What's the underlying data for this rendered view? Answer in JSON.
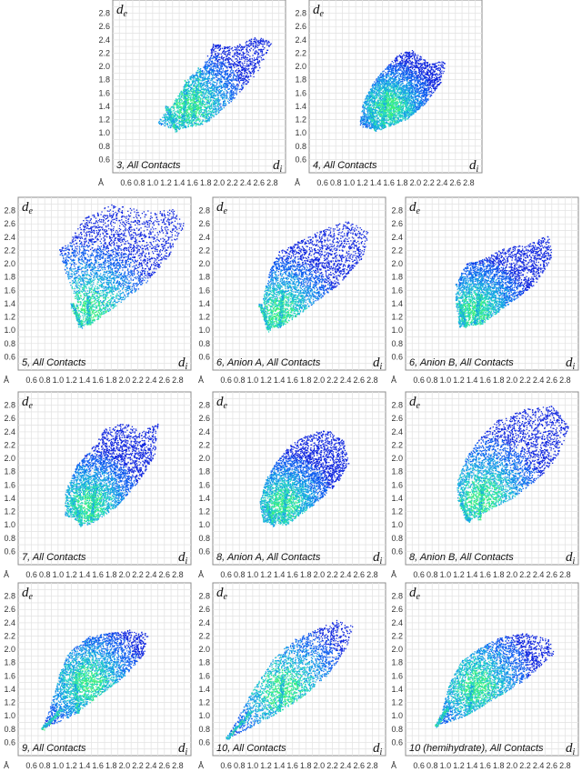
{
  "chart_data": [
    {
      "type": "scatter",
      "id": "p3",
      "caption": "3, All Contacts",
      "x_label": "d",
      "x_sub": "i",
      "y_label": "d",
      "y_sub": "e",
      "unit": "Å",
      "xlim": [
        0.4,
        3.0
      ],
      "ylim": [
        0.4,
        3.0
      ],
      "x_ticks": [
        "0.6",
        "0.8",
        "1.0",
        "1.2",
        "1.4",
        "1.6",
        "1.8",
        "2.0",
        "2.2",
        "2.4",
        "2.6",
        "2.8"
      ],
      "y_ticks": [
        "0.6",
        "0.8",
        "1.0",
        "1.2",
        "1.4",
        "1.6",
        "1.8",
        "2.0",
        "2.2",
        "2.4",
        "2.6",
        "2.8"
      ],
      "region": [
        [
          1.05,
          1.15
        ],
        [
          1.35,
          1.05
        ],
        [
          1.8,
          1.15
        ],
        [
          2.2,
          1.5
        ],
        [
          2.6,
          1.95
        ],
        [
          2.8,
          2.4
        ],
        [
          2.55,
          2.45
        ],
        [
          2.2,
          2.3
        ],
        [
          1.9,
          2.35
        ],
        [
          1.75,
          2.0
        ],
        [
          1.55,
          1.85
        ],
        [
          1.3,
          1.45
        ]
      ],
      "spikes": [
        [
          [
            1.35,
            1.05
          ],
          [
            1.2,
            1.4
          ]
        ],
        [
          [
            1.45,
            1.1
          ],
          [
            1.5,
            1.8
          ]
        ],
        [
          [
            1.6,
            1.2
          ],
          [
            1.7,
            2.0
          ]
        ]
      ],
      "peak": [
        1.55,
        1.4
      ]
    },
    {
      "type": "scatter",
      "id": "p4",
      "caption": "4, All Contacts",
      "x_label": "d",
      "x_sub": "i",
      "y_label": "d",
      "y_sub": "e",
      "unit": "Å",
      "xlim": [
        0.4,
        3.0
      ],
      "ylim": [
        0.4,
        3.0
      ],
      "x_ticks": [
        "0.6",
        "0.8",
        "1.0",
        "1.2",
        "1.4",
        "1.6",
        "1.8",
        "2.0",
        "2.2",
        "2.4",
        "2.6",
        "2.8"
      ],
      "y_ticks": [
        "0.6",
        "0.8",
        "1.0",
        "1.2",
        "1.4",
        "1.6",
        "1.8",
        "2.0",
        "2.2",
        "2.4",
        "2.6",
        "2.8"
      ],
      "region": [
        [
          1.15,
          1.1
        ],
        [
          1.45,
          1.05
        ],
        [
          1.85,
          1.2
        ],
        [
          2.15,
          1.45
        ],
        [
          2.4,
          1.8
        ],
        [
          2.45,
          2.1
        ],
        [
          2.2,
          2.05
        ],
        [
          1.95,
          2.25
        ],
        [
          1.75,
          2.2
        ],
        [
          1.55,
          2.0
        ],
        [
          1.35,
          1.75
        ],
        [
          1.2,
          1.45
        ]
      ],
      "spikes": [
        [
          [
            1.4,
            1.05
          ],
          [
            1.3,
            1.4
          ]
        ],
        [
          [
            1.5,
            1.1
          ],
          [
            1.55,
            1.7
          ]
        ]
      ],
      "peak": [
        1.6,
        1.4
      ]
    },
    {
      "type": "scatter",
      "id": "p5",
      "caption": "5, All Contacts",
      "x_label": "d",
      "x_sub": "i",
      "y_label": "d",
      "y_sub": "e",
      "unit": "Å",
      "xlim": [
        0.4,
        3.0
      ],
      "ylim": [
        0.4,
        3.0
      ],
      "x_ticks": [
        "0.6",
        "0.8",
        "1.0",
        "1.2",
        "1.4",
        "1.6",
        "1.8",
        "2.0",
        "2.2",
        "2.4",
        "2.6",
        "2.8"
      ],
      "y_ticks": [
        "0.6",
        "0.8",
        "1.0",
        "1.2",
        "1.4",
        "1.6",
        "1.8",
        "2.0",
        "2.2",
        "2.4",
        "2.6",
        "2.8"
      ],
      "region": [
        [
          1.3,
          1.05
        ],
        [
          1.5,
          1.1
        ],
        [
          1.9,
          1.4
        ],
        [
          2.3,
          1.7
        ],
        [
          2.65,
          2.1
        ],
        [
          2.9,
          2.6
        ],
        [
          2.7,
          2.85
        ],
        [
          2.3,
          2.8
        ],
        [
          1.8,
          2.9
        ],
        [
          1.4,
          2.7
        ],
        [
          1.2,
          2.4
        ],
        [
          1.0,
          2.2
        ],
        [
          1.1,
          1.9
        ],
        [
          1.25,
          1.5
        ]
      ],
      "spikes": [
        [
          [
            1.35,
            1.05
          ],
          [
            1.2,
            1.4
          ]
        ],
        [
          [
            1.45,
            1.1
          ],
          [
            1.45,
            1.5
          ]
        ]
      ],
      "peak": [
        1.45,
        1.3
      ]
    },
    {
      "type": "scatter",
      "id": "p6a",
      "caption": "6, Anion A, All Contacts",
      "x_label": "d",
      "x_sub": "i",
      "y_label": "d",
      "y_sub": "e",
      "unit": "Å",
      "xlim": [
        0.4,
        3.0
      ],
      "ylim": [
        0.4,
        3.0
      ],
      "x_ticks": [
        "0.6",
        "0.8",
        "1.0",
        "1.2",
        "1.4",
        "1.6",
        "1.8",
        "2.0",
        "2.2",
        "2.4",
        "2.6",
        "2.8"
      ],
      "y_ticks": [
        "0.6",
        "0.8",
        "1.0",
        "1.2",
        "1.4",
        "1.6",
        "1.8",
        "2.0",
        "2.2",
        "2.4",
        "2.6",
        "2.8"
      ],
      "region": [
        [
          1.2,
          1.0
        ],
        [
          1.5,
          1.1
        ],
        [
          1.9,
          1.4
        ],
        [
          2.3,
          1.7
        ],
        [
          2.65,
          2.1
        ],
        [
          2.75,
          2.5
        ],
        [
          2.4,
          2.65
        ],
        [
          2.0,
          2.5
        ],
        [
          1.7,
          2.35
        ],
        [
          1.4,
          2.2
        ],
        [
          1.25,
          1.9
        ],
        [
          1.15,
          1.5
        ]
      ],
      "spikes": [
        [
          [
            1.25,
            1.0
          ],
          [
            1.1,
            1.4
          ]
        ],
        [
          [
            1.4,
            1.05
          ],
          [
            1.45,
            1.6
          ]
        ]
      ],
      "peak": [
        1.4,
        1.25
      ]
    },
    {
      "type": "scatter",
      "id": "p6b",
      "caption": "6, Anion B, All Contacts",
      "x_label": "d",
      "x_sub": "i",
      "y_label": "d",
      "y_sub": "e",
      "unit": "Å",
      "xlim": [
        0.4,
        3.0
      ],
      "ylim": [
        0.4,
        3.0
      ],
      "x_ticks": [
        "0.6",
        "0.8",
        "1.0",
        "1.2",
        "1.4",
        "1.6",
        "1.8",
        "2.0",
        "2.2",
        "2.4",
        "2.6",
        "2.8"
      ],
      "y_ticks": [
        "0.6",
        "0.8",
        "1.0",
        "1.2",
        "1.4",
        "1.6",
        "1.8",
        "2.0",
        "2.2",
        "2.4",
        "2.6",
        "2.8"
      ],
      "region": [
        [
          1.2,
          1.05
        ],
        [
          1.55,
          1.1
        ],
        [
          1.95,
          1.4
        ],
        [
          2.35,
          1.7
        ],
        [
          2.6,
          2.1
        ],
        [
          2.55,
          2.45
        ],
        [
          2.25,
          2.3
        ],
        [
          1.9,
          2.25
        ],
        [
          1.6,
          2.1
        ],
        [
          1.3,
          2.0
        ],
        [
          1.15,
          1.7
        ],
        [
          1.15,
          1.4
        ]
      ],
      "spikes": [
        [
          [
            1.3,
            1.05
          ],
          [
            1.2,
            1.4
          ]
        ],
        [
          [
            1.45,
            1.1
          ],
          [
            1.5,
            1.5
          ]
        ]
      ],
      "peak": [
        1.45,
        1.3
      ]
    },
    {
      "type": "scatter",
      "id": "p7",
      "caption": "7, All Contacts",
      "x_label": "d",
      "x_sub": "i",
      "y_label": "d",
      "y_sub": "e",
      "unit": "Å",
      "xlim": [
        0.4,
        3.0
      ],
      "ylim": [
        0.4,
        3.0
      ],
      "x_ticks": [
        "0.6",
        "0.8",
        "1.0",
        "1.2",
        "1.4",
        "1.6",
        "1.8",
        "2.0",
        "2.2",
        "2.4",
        "2.6",
        "2.8"
      ],
      "y_ticks": [
        "0.6",
        "0.8",
        "1.0",
        "1.2",
        "1.4",
        "1.6",
        "1.8",
        "2.0",
        "2.2",
        "2.4",
        "2.6",
        "2.8"
      ],
      "region": [
        [
          1.1,
          1.15
        ],
        [
          1.45,
          1.0
        ],
        [
          1.85,
          1.25
        ],
        [
          2.2,
          1.65
        ],
        [
          2.45,
          2.05
        ],
        [
          2.5,
          2.55
        ],
        [
          2.25,
          2.4
        ],
        [
          2.0,
          2.55
        ],
        [
          1.7,
          2.45
        ],
        [
          1.5,
          2.15
        ],
        [
          1.3,
          1.95
        ],
        [
          1.1,
          1.5
        ]
      ],
      "spikes": [
        [
          [
            1.35,
            1.0
          ],
          [
            1.2,
            1.4
          ]
        ],
        [
          [
            1.5,
            1.05
          ],
          [
            1.55,
            1.6
          ]
        ]
      ],
      "peak": [
        1.45,
        1.3
      ]
    },
    {
      "type": "scatter",
      "id": "p8a",
      "caption": "8, Anion A, All Contacts",
      "x_label": "d",
      "x_sub": "i",
      "y_label": "d",
      "y_sub": "e",
      "unit": "Å",
      "xlim": [
        0.4,
        3.0
      ],
      "ylim": [
        0.4,
        3.0
      ],
      "x_ticks": [
        "0.6",
        "0.8",
        "1.0",
        "1.2",
        "1.4",
        "1.6",
        "1.8",
        "2.0",
        "2.2",
        "2.4",
        "2.6",
        "2.8"
      ],
      "y_ticks": [
        "0.6",
        "0.8",
        "1.0",
        "1.2",
        "1.4",
        "1.6",
        "1.8",
        "2.0",
        "2.2",
        "2.4",
        "2.6",
        "2.8"
      ],
      "region": [
        [
          1.15,
          1.05
        ],
        [
          1.5,
          1.0
        ],
        [
          1.9,
          1.3
        ],
        [
          2.25,
          1.6
        ],
        [
          2.45,
          1.95
        ],
        [
          2.35,
          2.3
        ],
        [
          2.1,
          2.45
        ],
        [
          1.8,
          2.35
        ],
        [
          1.55,
          2.2
        ],
        [
          1.35,
          1.95
        ],
        [
          1.2,
          1.7
        ],
        [
          1.1,
          1.35
        ]
      ],
      "spikes": [
        [
          [
            1.3,
            1.0
          ],
          [
            1.2,
            1.35
          ]
        ],
        [
          [
            1.45,
            1.05
          ],
          [
            1.5,
            1.55
          ]
        ]
      ],
      "peak": [
        1.45,
        1.3
      ]
    },
    {
      "type": "scatter",
      "id": "p8b",
      "caption": "8, Anion B, All Contacts",
      "x_label": "d",
      "x_sub": "i",
      "y_label": "d",
      "y_sub": "e",
      "unit": "Å",
      "xlim": [
        0.4,
        3.0
      ],
      "ylim": [
        0.4,
        3.0
      ],
      "x_ticks": [
        "0.6",
        "0.8",
        "1.0",
        "1.2",
        "1.4",
        "1.6",
        "1.8",
        "2.0",
        "2.2",
        "2.4",
        "2.6",
        "2.8"
      ],
      "y_ticks": [
        "0.6",
        "0.8",
        "1.0",
        "1.2",
        "1.4",
        "1.6",
        "1.8",
        "2.0",
        "2.2",
        "2.4",
        "2.6",
        "2.8"
      ],
      "region": [
        [
          1.3,
          1.05
        ],
        [
          1.6,
          1.2
        ],
        [
          2.0,
          1.4
        ],
        [
          2.4,
          1.7
        ],
        [
          2.7,
          2.05
        ],
        [
          2.85,
          2.5
        ],
        [
          2.6,
          2.8
        ],
        [
          2.2,
          2.75
        ],
        [
          1.8,
          2.6
        ],
        [
          1.5,
          2.3
        ],
        [
          1.3,
          2.0
        ],
        [
          1.15,
          1.6
        ]
      ],
      "spikes": [
        [
          [
            1.35,
            1.05
          ],
          [
            1.2,
            1.4
          ]
        ],
        [
          [
            1.5,
            1.1
          ],
          [
            1.55,
            1.6
          ]
        ]
      ],
      "peak": [
        1.55,
        1.4
      ]
    },
    {
      "type": "scatter",
      "id": "p9",
      "caption": "9, All Contacts",
      "x_label": "d",
      "x_sub": "i",
      "y_label": "d",
      "y_sub": "e",
      "unit": "Å",
      "xlim": [
        0.4,
        3.0
      ],
      "ylim": [
        0.4,
        3.0
      ],
      "x_ticks": [
        "0.6",
        "0.8",
        "1.0",
        "1.2",
        "1.4",
        "1.6",
        "1.8",
        "2.0",
        "2.2",
        "2.4",
        "2.6",
        "2.8"
      ],
      "y_ticks": [
        "0.6",
        "0.8",
        "1.0",
        "1.2",
        "1.4",
        "1.6",
        "1.8",
        "2.0",
        "2.2",
        "2.4",
        "2.6",
        "2.8"
      ],
      "region": [
        [
          0.75,
          0.8
        ],
        [
          1.2,
          1.0
        ],
        [
          1.6,
          1.3
        ],
        [
          2.0,
          1.6
        ],
        [
          2.3,
          1.95
        ],
        [
          2.35,
          2.25
        ],
        [
          2.05,
          2.3
        ],
        [
          1.75,
          2.25
        ],
        [
          1.45,
          2.2
        ],
        [
          1.15,
          1.95
        ],
        [
          1.0,
          1.6
        ],
        [
          0.85,
          1.05
        ]
      ],
      "spikes": [
        [
          [
            0.75,
            0.8
          ],
          [
            1.05,
            1.1
          ]
        ],
        [
          [
            1.3,
            1.05
          ],
          [
            1.25,
            1.5
          ]
        ]
      ],
      "peak": [
        1.45,
        1.5
      ]
    },
    {
      "type": "scatter",
      "id": "p10",
      "caption": "10, All Contacts",
      "x_label": "d",
      "x_sub": "i",
      "y_label": "d",
      "y_sub": "e",
      "unit": "Å",
      "xlim": [
        0.4,
        3.0
      ],
      "ylim": [
        0.4,
        3.0
      ],
      "x_ticks": [
        "0.6",
        "0.8",
        "1.0",
        "1.2",
        "1.4",
        "1.6",
        "1.8",
        "2.0",
        "2.2",
        "2.4",
        "2.6",
        "2.8"
      ],
      "y_ticks": [
        "0.6",
        "0.8",
        "1.0",
        "1.2",
        "1.4",
        "1.6",
        "1.8",
        "2.0",
        "2.2",
        "2.4",
        "2.6",
        "2.8"
      ],
      "region": [
        [
          0.6,
          0.65
        ],
        [
          1.2,
          0.95
        ],
        [
          1.7,
          1.25
        ],
        [
          2.1,
          1.6
        ],
        [
          2.4,
          2.0
        ],
        [
          2.5,
          2.35
        ],
        [
          2.25,
          2.45
        ],
        [
          1.95,
          2.3
        ],
        [
          1.6,
          2.15
        ],
        [
          1.3,
          1.85
        ],
        [
          1.0,
          1.4
        ],
        [
          0.7,
          0.85
        ]
      ],
      "spikes": [
        [
          [
            0.6,
            0.65
          ],
          [
            1.0,
            1.1
          ]
        ],
        [
          [
            1.4,
            1.1
          ],
          [
            1.45,
            1.6
          ]
        ]
      ],
      "peak": [
        1.45,
        1.4
      ]
    },
    {
      "type": "scatter",
      "id": "p10h",
      "caption": "10 (hemihydrate), All Contacts",
      "x_label": "d",
      "x_sub": "i",
      "y_label": "d",
      "y_sub": "e",
      "unit": "Å",
      "xlim": [
        0.4,
        3.0
      ],
      "ylim": [
        0.4,
        3.0
      ],
      "x_ticks": [
        "0.6",
        "0.8",
        "1.0",
        "1.2",
        "1.4",
        "1.6",
        "1.8",
        "2.0",
        "2.2",
        "2.4",
        "2.6",
        "2.8"
      ],
      "y_ticks": [
        "0.6",
        "0.8",
        "1.0",
        "1.2",
        "1.4",
        "1.6",
        "1.8",
        "2.0",
        "2.2",
        "2.4",
        "2.6",
        "2.8"
      ],
      "region": [
        [
          0.85,
          0.85
        ],
        [
          1.3,
          1.0
        ],
        [
          1.8,
          1.3
        ],
        [
          2.2,
          1.55
        ],
        [
          2.65,
          1.95
        ],
        [
          2.55,
          2.15
        ],
        [
          2.2,
          2.25
        ],
        [
          1.85,
          2.2
        ],
        [
          1.55,
          2.05
        ],
        [
          1.25,
          1.85
        ],
        [
          1.05,
          1.5
        ],
        [
          0.95,
          1.1
        ]
      ],
      "spikes": [
        [
          [
            0.85,
            0.85
          ],
          [
            1.05,
            1.15
          ]
        ],
        [
          [
            1.35,
            1.05
          ],
          [
            1.4,
            1.5
          ]
        ]
      ],
      "peak": [
        1.45,
        1.45
      ]
    }
  ]
}
